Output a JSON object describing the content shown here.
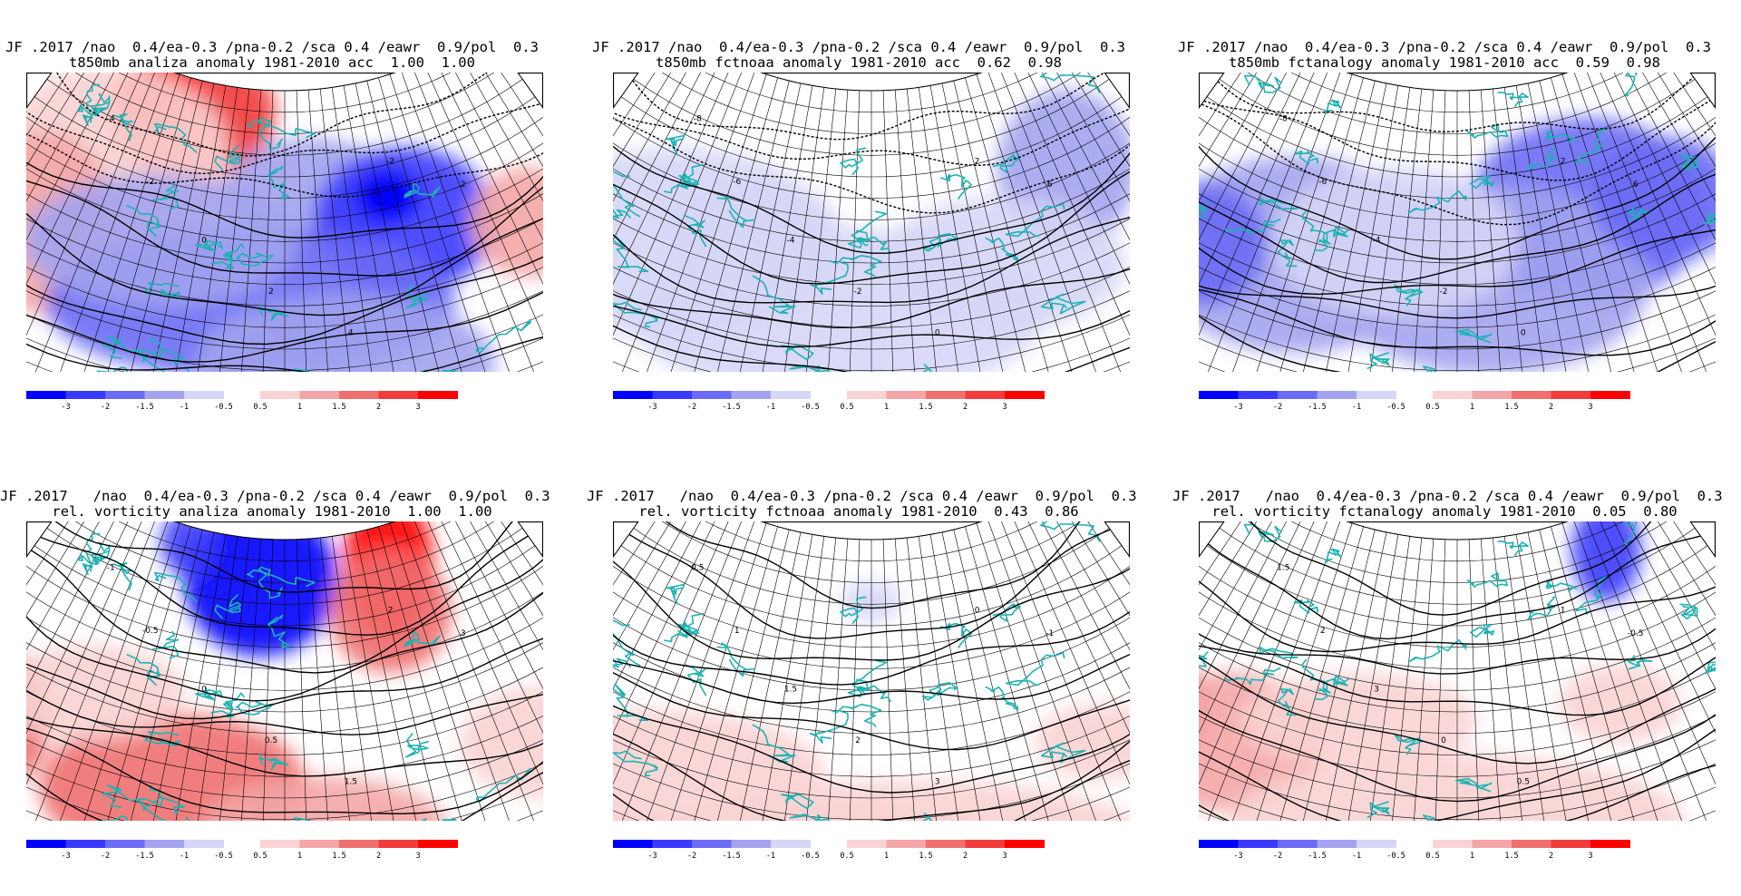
{
  "colors": {
    "negative": [
      "#0000ff",
      "#3a3aff",
      "#6b6bf5",
      "#a3a3f0",
      "#d6d6f7"
    ],
    "positive": [
      "#f9d3d3",
      "#f4a6a6",
      "#f07070",
      "#f23c3c",
      "#ff0000"
    ],
    "contour": "#000000",
    "coastline": "#1cb3b3",
    "grid": "#000000"
  },
  "colorbar": {
    "negative_labels": [
      "-3",
      "-2",
      "-1.5",
      "-1",
      "-0.5"
    ],
    "positive_labels": [
      "0.5",
      "1",
      "1.5",
      "2",
      "3"
    ]
  },
  "panels": [
    {
      "title1": "JF .2017 /nao  0.4/ea-0.3 /pna-0.2 /sca 0.4 /eawr  0.9/pol  0.3",
      "title2": "t850mb analiza anomaly 1981-2010 acc  1.00  1.00",
      "contour_labels": [
        "-4",
        "-2",
        "0",
        "2",
        "4",
        "-2",
        "2"
      ]
    },
    {
      "title1": "JF .2017 /nao  0.4/ea-0.3 /pna-0.2 /sca 0.4 /eawr  0.9/pol  0.3",
      "title2": "t850mb fctnoaa anomaly 1981-2010 acc  0.62  0.98",
      "contour_labels": [
        "-8",
        "-6",
        "-4",
        "-2",
        "0",
        "2",
        "6"
      ]
    },
    {
      "title1": "JF .2017 /nao  0.4/ea-0.3 /pna-0.2 /sca 0.4 /eawr  0.9/pol  0.3",
      "title2": "t850mb fctanalogy anomaly 1981-2010 acc  0.59  0.98",
      "contour_labels": [
        "-8",
        "-6",
        "-4",
        "-2",
        "0",
        "2",
        "6"
      ]
    },
    {
      "title1": "JF .2017   /nao  0.4/ea-0.3 /pna-0.2 /sca 0.4 /eawr  0.9/pol  0.3",
      "title2": "rel. vorticity analiza anomaly 1981-2010  1.00  1.00",
      "contour_labels": [
        "-1",
        "-0.5",
        "0",
        "0.5",
        "1.5",
        "2",
        "3"
      ]
    },
    {
      "title1": "JF .2017   /nao  0.4/ea-0.3 /pna-0.2 /sca 0.4 /eawr  0.9/pol  0.3",
      "title2": "rel. vorticity fctnoaa anomaly 1981-2010  0.43  0.86",
      "contour_labels": [
        "0.5",
        "1",
        "1.5",
        "2",
        "3",
        "0",
        "-1"
      ]
    },
    {
      "title1": "JF .2017   /nao  0.4/ea-0.3 /pna-0.2 /sca 0.4 /eawr  0.9/pol  0.3",
      "title2": "rel. vorticity fctanalogy anomaly 1981-2010  0.05  0.80",
      "contour_labels": [
        "1.5",
        "2",
        "3",
        "0",
        "0.5",
        "1",
        "-0.5"
      ]
    }
  ]
}
